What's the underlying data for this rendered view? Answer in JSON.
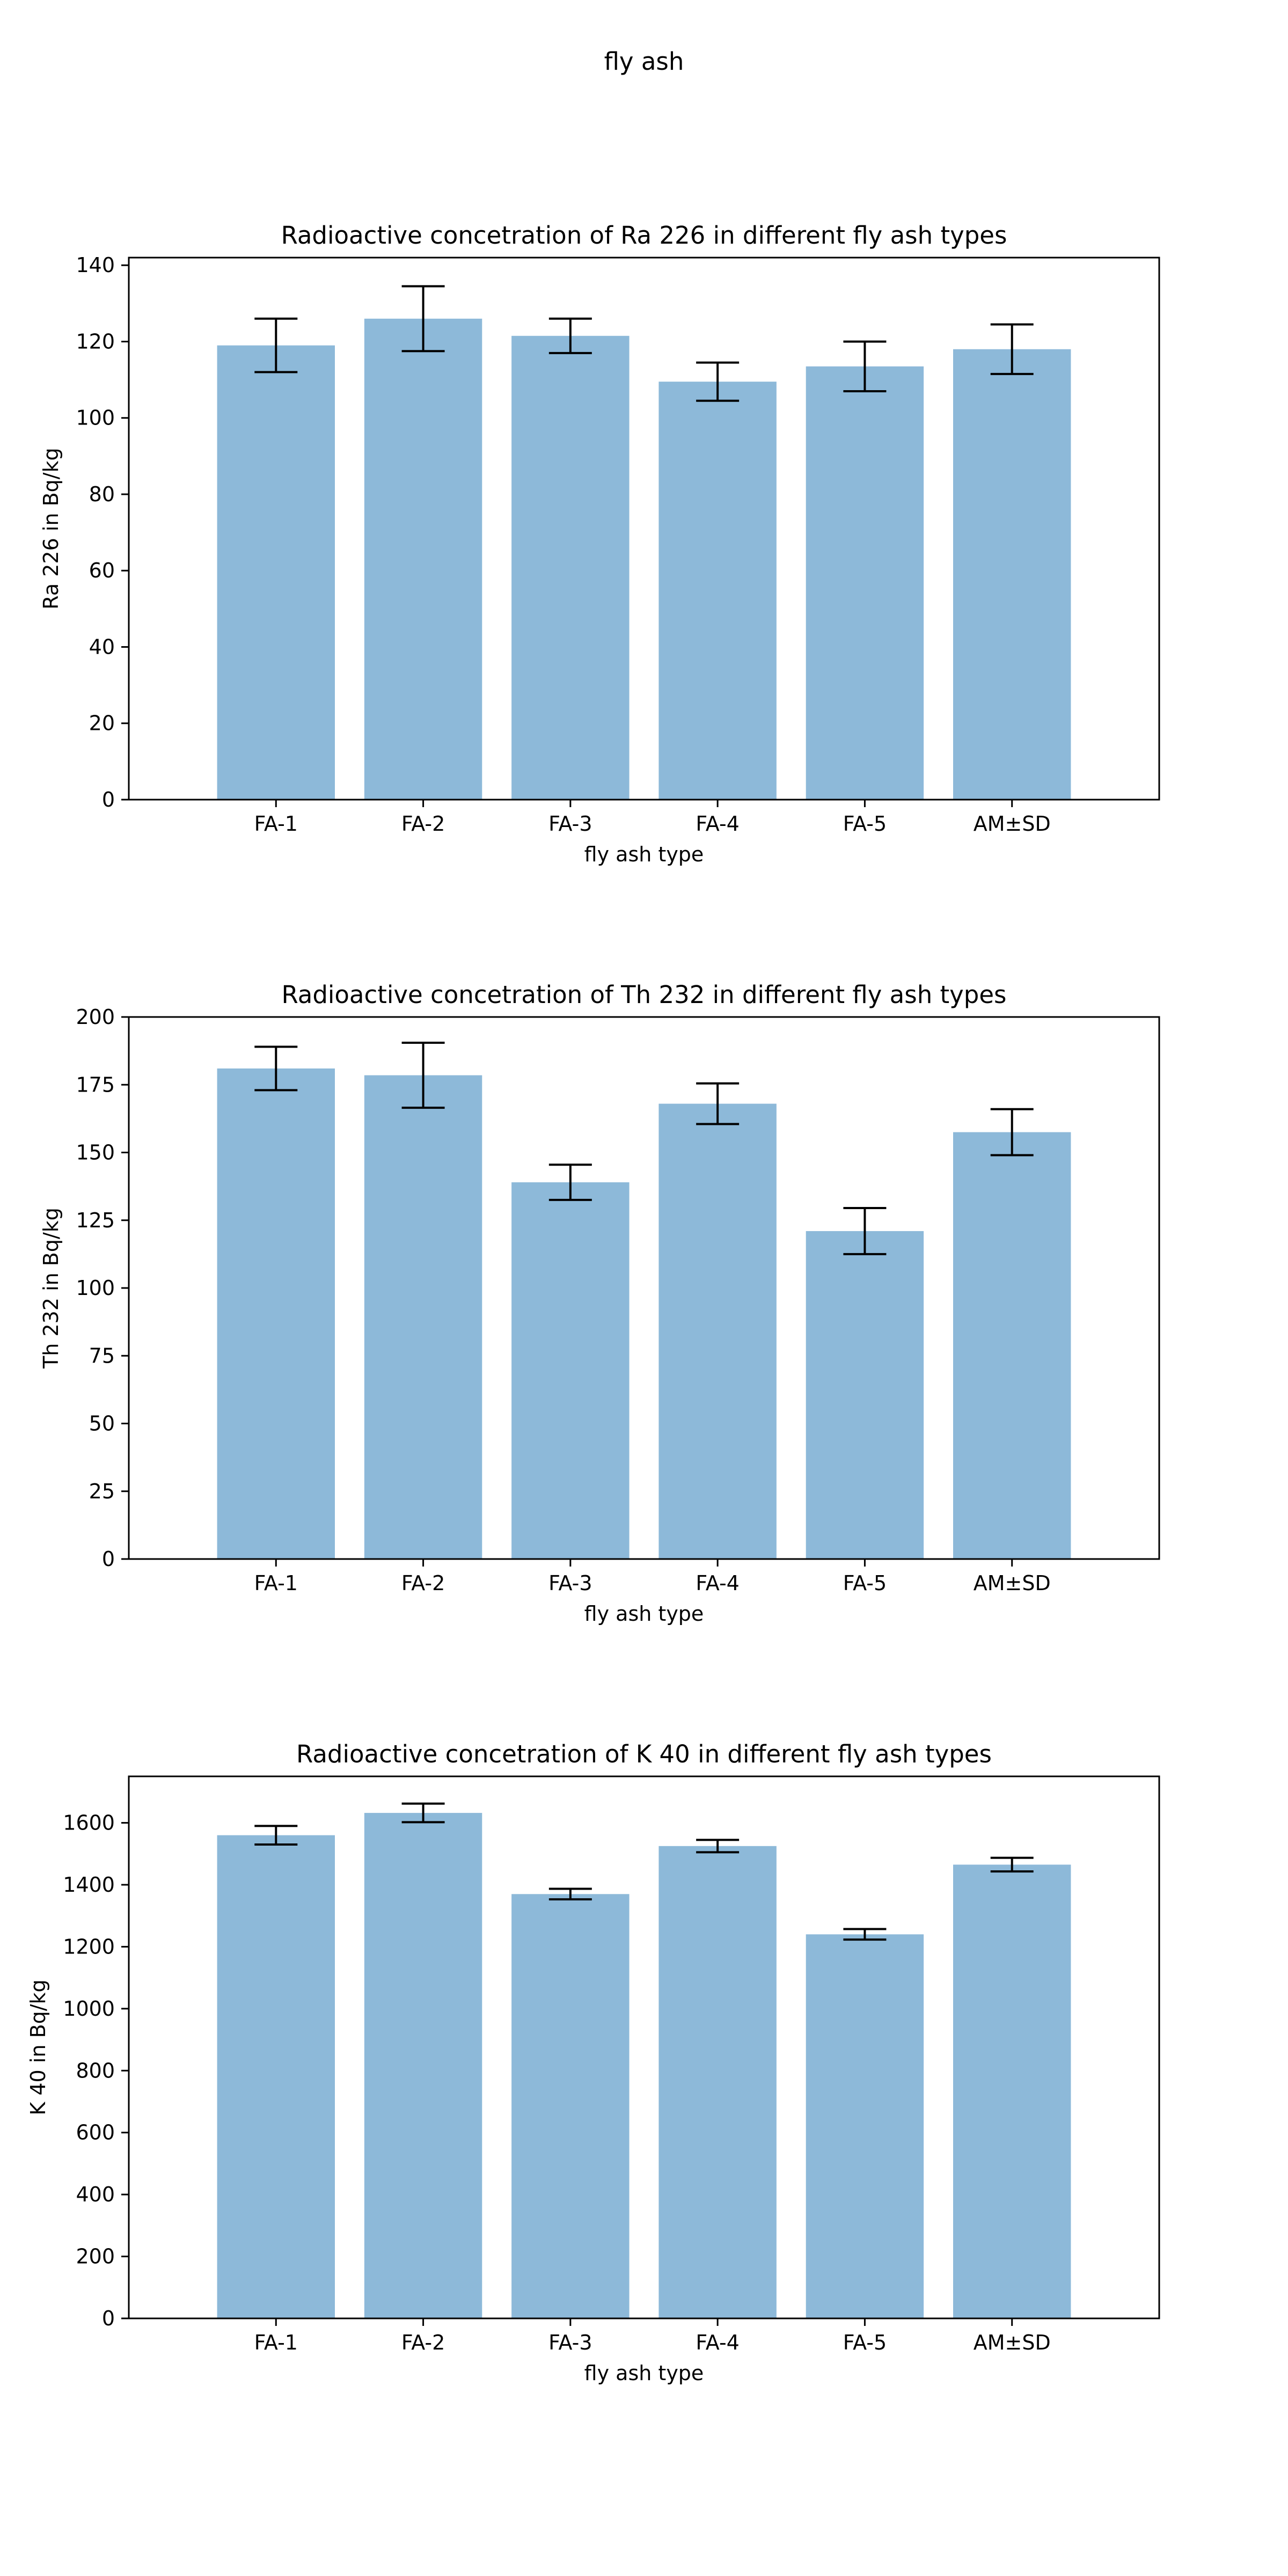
{
  "figure": {
    "title": "fly ash"
  },
  "colors": {
    "bar": "#8db9d9",
    "errorbar": "#000000",
    "axes": "#000000",
    "background": "#ffffff"
  },
  "chart_data": [
    {
      "type": "bar",
      "title": "Radioactive concetration of Ra 226 in different fly ash types",
      "xlabel": "fly ash type",
      "ylabel": "Ra 226 in Bq/kg",
      "categories": [
        "FA-1",
        "FA-2",
        "FA-3",
        "FA-4",
        "FA-5",
        "AM±SD"
      ],
      "values": [
        119,
        126,
        121.5,
        109.5,
        113.5,
        118
      ],
      "errors": [
        7,
        8.5,
        4.5,
        5,
        6.5,
        6.5
      ],
      "ylim": [
        0,
        142
      ],
      "yticks": [
        0,
        20,
        40,
        60,
        80,
        100,
        120,
        140
      ],
      "grid": false
    },
    {
      "type": "bar",
      "title": "Radioactive concetration of Th 232 in different fly ash types",
      "xlabel": "fly ash type",
      "ylabel": "Th 232 in Bq/kg",
      "categories": [
        "FA-1",
        "FA-2",
        "FA-3",
        "FA-4",
        "FA-5",
        "AM±SD"
      ],
      "values": [
        181,
        178.5,
        139,
        168,
        121,
        157.5
      ],
      "errors": [
        8,
        12,
        6.5,
        7.5,
        8.5,
        8.5
      ],
      "ylim": [
        0,
        200
      ],
      "yticks": [
        0,
        25,
        50,
        75,
        100,
        125,
        150,
        175,
        200
      ],
      "grid": false
    },
    {
      "type": "bar",
      "title": "Radioactive concetration of K 40 in different fly ash types",
      "xlabel": "fly ash type",
      "ylabel": "K 40 in Bq/kg",
      "categories": [
        "FA-1",
        "FA-2",
        "FA-3",
        "FA-4",
        "FA-5",
        "AM±SD"
      ],
      "values": [
        1560,
        1632,
        1370,
        1525,
        1240,
        1465
      ],
      "errors": [
        30,
        30,
        17,
        20,
        17,
        22
      ],
      "ylim": [
        0,
        1750
      ],
      "yticks": [
        0,
        200,
        400,
        600,
        800,
        1000,
        1200,
        1400,
        1600
      ],
      "grid": false
    }
  ]
}
